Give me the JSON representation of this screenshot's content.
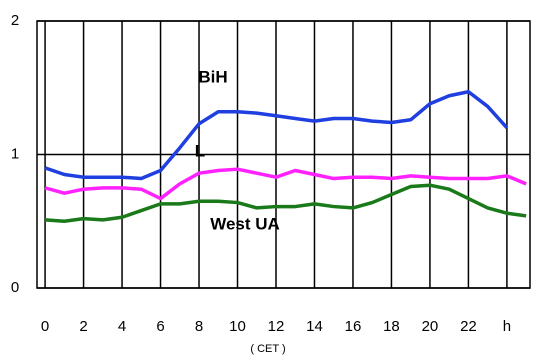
{
  "chart_data": {
    "type": "line",
    "x_label": "( CET )",
    "x": [
      0,
      1,
      2,
      3,
      4,
      5,
      6,
      7,
      8,
      9,
      10,
      11,
      12,
      13,
      14,
      15,
      16,
      17,
      18,
      19,
      20,
      21,
      22,
      23,
      24,
      25
    ],
    "series": [
      {
        "name": "BiH",
        "color": "#1f3fe0",
        "values": [
          0.9,
          0.85,
          0.83,
          0.83,
          0.83,
          0.82,
          0.88,
          1.05,
          1.23,
          1.32,
          1.32,
          1.31,
          1.29,
          1.27,
          1.25,
          1.27,
          1.27,
          1.25,
          1.24,
          1.26,
          1.38,
          1.44,
          1.47,
          1.36,
          1.2,
          null
        ]
      },
      {
        "name": "L",
        "color": "#ff22ff",
        "values": [
          0.75,
          0.71,
          0.74,
          0.75,
          0.75,
          0.74,
          0.67,
          0.78,
          0.86,
          0.88,
          0.89,
          0.86,
          0.83,
          0.88,
          0.85,
          0.82,
          0.83,
          0.83,
          0.82,
          0.84,
          0.83,
          0.82,
          0.82,
          0.82,
          0.84,
          0.78
        ]
      },
      {
        "name": "West UA",
        "color": "#1a7a1a",
        "values": [
          0.51,
          0.5,
          0.52,
          0.51,
          0.53,
          0.58,
          0.63,
          0.63,
          0.65,
          0.65,
          0.64,
          0.6,
          0.61,
          0.61,
          0.63,
          0.61,
          0.6,
          0.64,
          0.7,
          0.76,
          0.77,
          0.74,
          0.67,
          0.6,
          0.56,
          0.54
        ]
      }
    ],
    "xlim": [
      -0.42,
      25.2
    ],
    "xticks": [
      0,
      2,
      4,
      6,
      8,
      10,
      12,
      14,
      16,
      18,
      20,
      22,
      {
        "value": 24,
        "label": "h"
      }
    ],
    "ylim": [
      0,
      2
    ],
    "yticks": [
      0,
      1,
      2
    ],
    "grid": true
  }
}
